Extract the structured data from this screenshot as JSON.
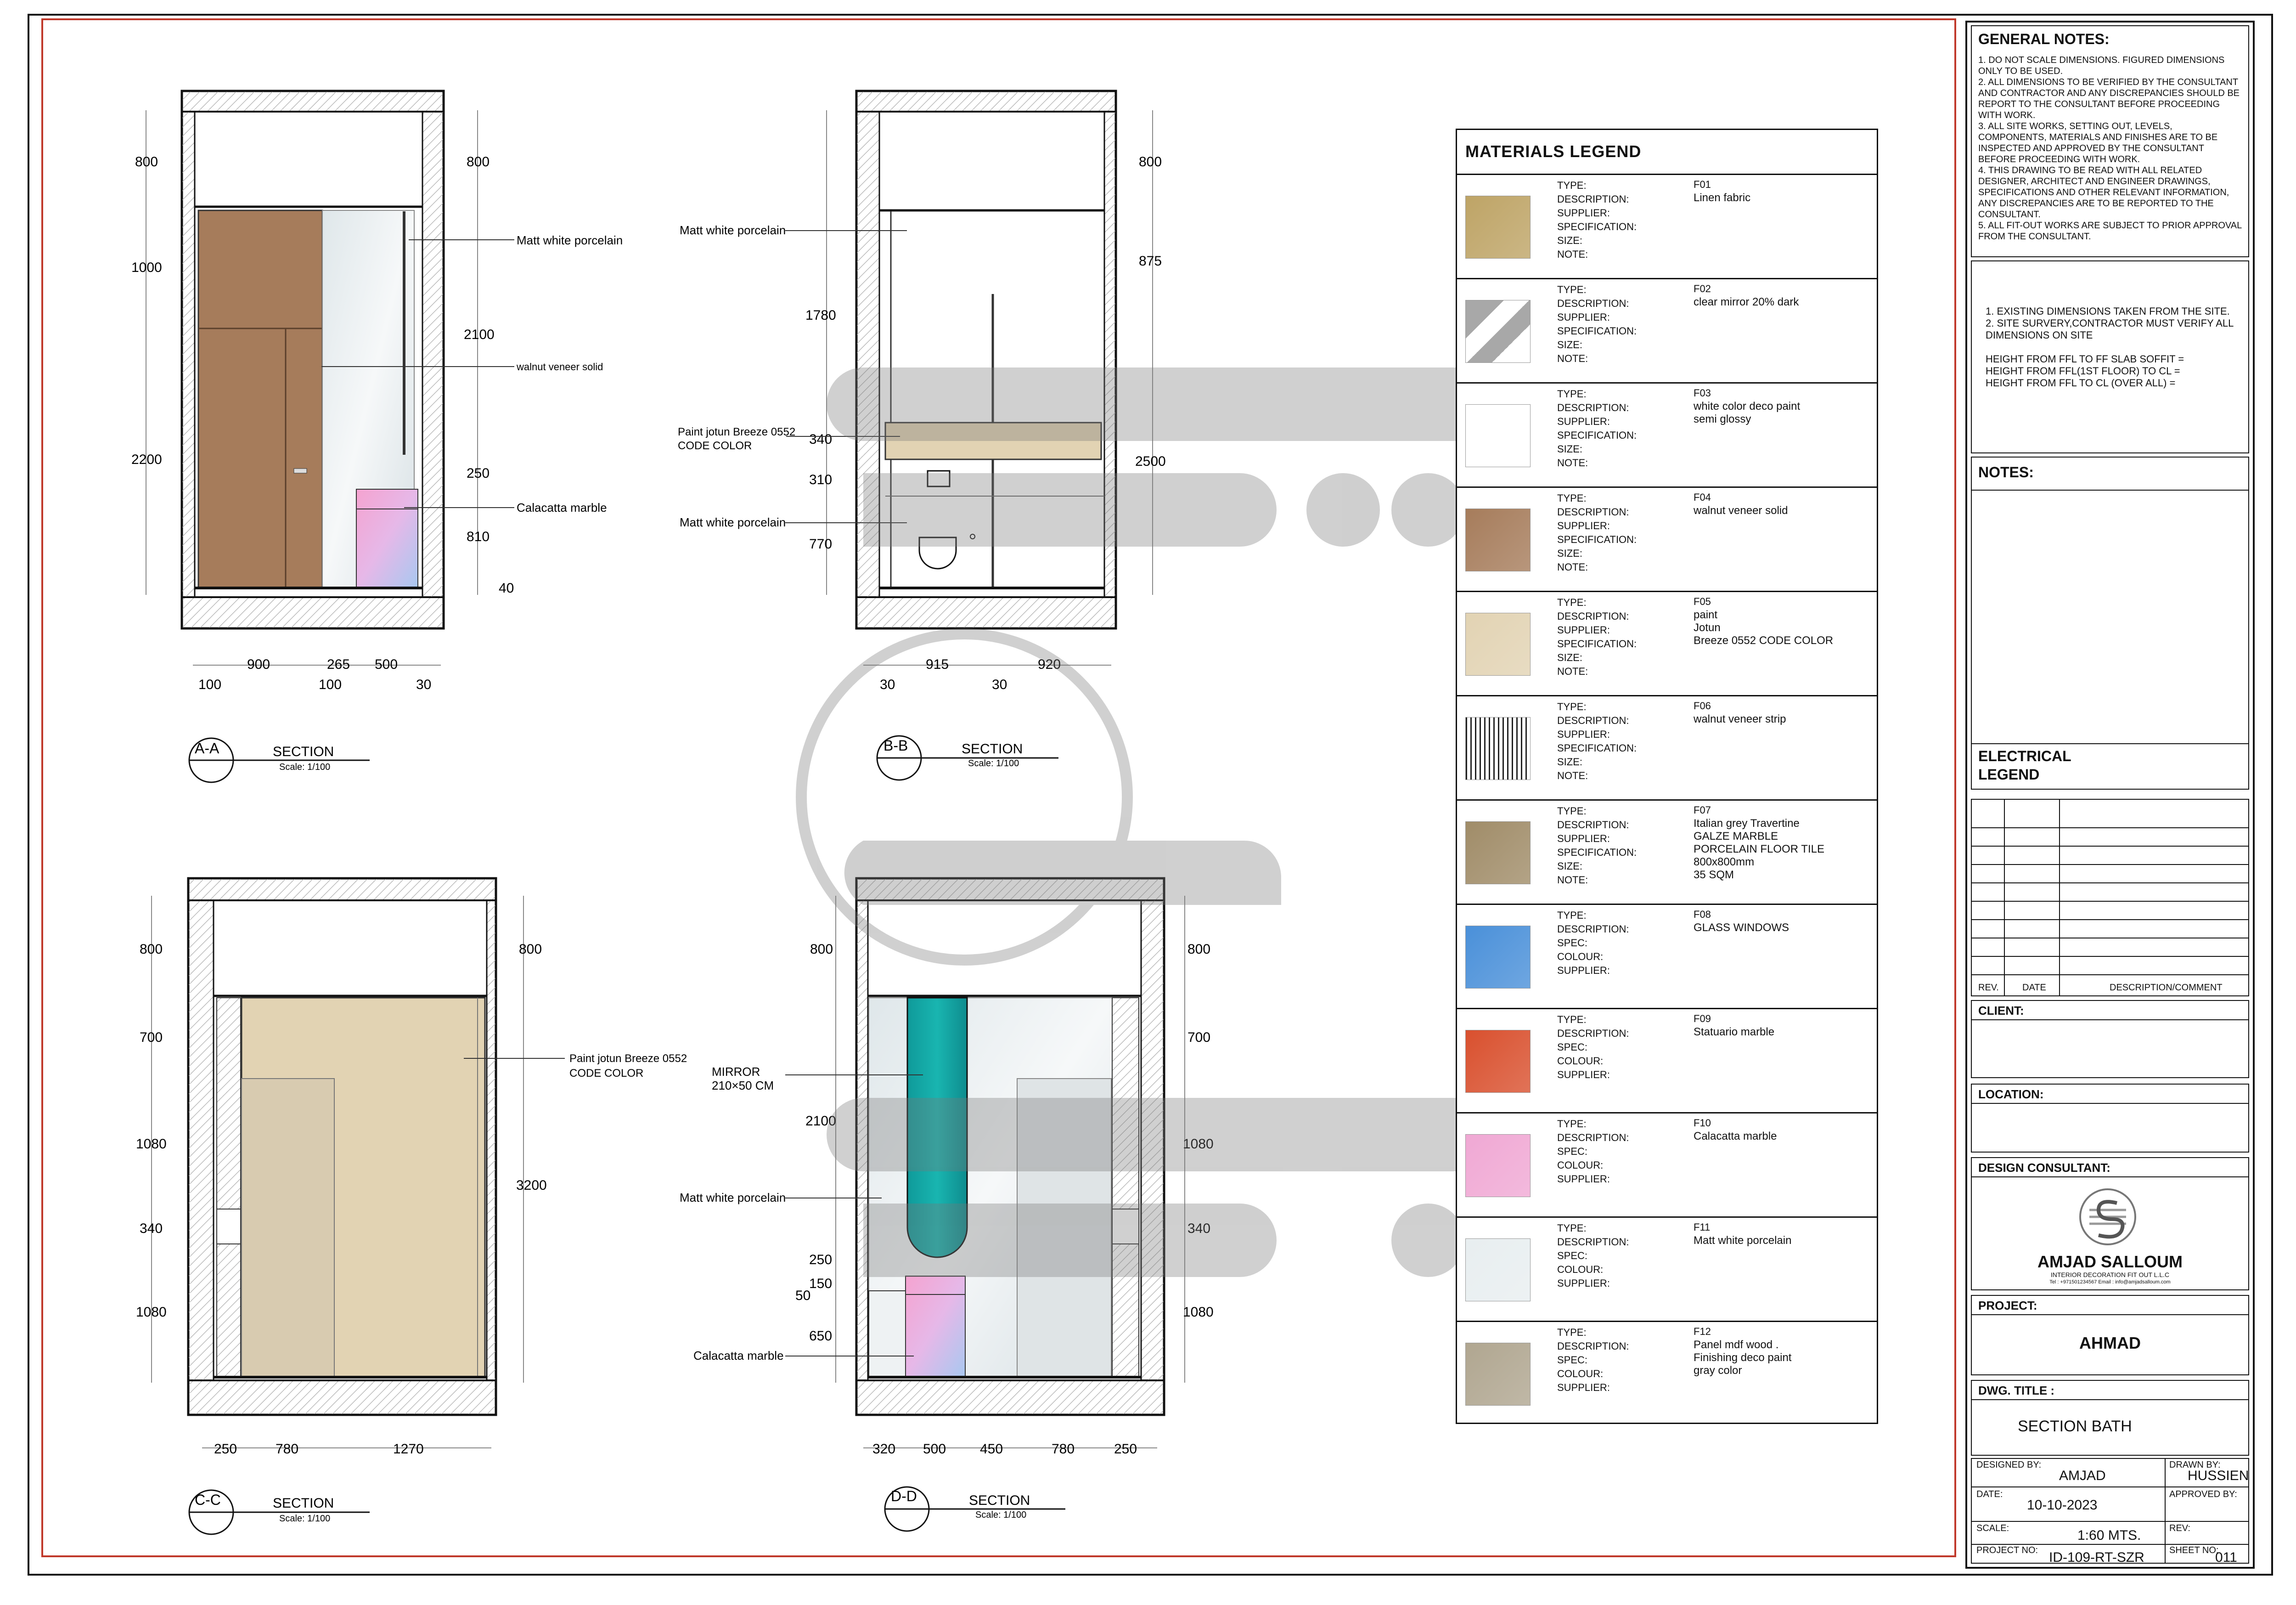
{
  "general_notes": {
    "title": "GENERAL NOTES:",
    "items": [
      "1. DO NOT SCALE DIMENSIONS. FIGURED DIMENSIONS ONLY TO BE USED.",
      "2. ALL DIMENSIONS TO BE VERIFIED BY THE CONSULTANT AND CONTRACTOR AND ANY DISCREPANCIES SHOULD BE REPORT TO THE CONSULTANT BEFORE PROCEEDING WITH WORK.",
      "3. ALL SITE WORKS, SETTING OUT, LEVELS, COMPONENTS, MATERIALS AND FINISHES ARE TO BE INSPECTED AND APPROVED BY THE CONSULTANT BEFORE PROCEEDING WITH WORK.",
      "4. THIS DRAWING TO BE READ WITH ALL RELATED DESIGNER, ARCHITECT AND ENGINEER DRAWINGS, SPECIFICATIONS AND OTHER RELEVANT INFORMATION, ANY DISCREPANCIES ARE TO BE REPORTED TO THE CONSULTANT.",
      "5. ALL FIT-OUT WORKS ARE SUBJECT TO PRIOR APPROVAL FROM THE CONSULTANT."
    ]
  },
  "site_notes": {
    "lines": [
      "1. EXISTING DIMENSIONS TAKEN FROM THE SITE.",
      "2. SITE SURVERY,CONTRACTOR MUST VERIFY ALL DIMENSIONS ON SITE",
      "",
      "HEIGHT FROM FFL TO FF SLAB SOFFIT =",
      "HEIGHT FROM FFL(1ST FLOOR) TO CL =",
      "HEIGHT FROM FFL TO CL (OVER ALL) ="
    ]
  },
  "notes_title": "NOTES:",
  "electrical_legend": {
    "line1": "ELECTRICAL",
    "line2": "LEGEND"
  },
  "revision_table": {
    "rev": "REV.",
    "date": "DATE",
    "desc": "DESCRIPTION/COMMENT"
  },
  "client_label": "CLIENT:",
  "location_label": "LOCATION:",
  "design_consultant": {
    "label": "DESIGN CONSULTANT:",
    "name": "AMJAD SALLOUM",
    "tagline": "INTERIOR DECORATION FIT OUT L.L.C",
    "contact": "Tel : +971501234567       Email : info@amjadsalloum.com"
  },
  "project": {
    "label": "PROJECT:",
    "value": "AHMAD"
  },
  "dwg_title": {
    "label": "DWG. TITLE :",
    "value": "SECTION  BATH"
  },
  "designed_by": {
    "label": "DESIGNED BY:",
    "value": "AMJAD"
  },
  "drawn_by": {
    "label": "DRAWN BY:",
    "value": "HUSSIEN"
  },
  "date": {
    "label": "DATE:",
    "value": "10-10-2023"
  },
  "approved_by": {
    "label": "APPROVED BY:",
    "value": ""
  },
  "scale": {
    "label": "SCALE:",
    "value": "1:60 MTS."
  },
  "rev": {
    "label": "REV:",
    "value": ""
  },
  "project_no": {
    "label": "PROJECT NO:",
    "value": "ID-109-RT-SZR"
  },
  "sheet_no": {
    "label": "SHEET NO:",
    "value": "011"
  },
  "materials_legend": {
    "title": "MATERIALS  LEGEND",
    "items": [
      {
        "code": "F01",
        "fields": [
          "TYPE:",
          "DESCRIPTION:",
          "SUPPLIER:",
          "SPECIFICATION:",
          "SIZE:",
          "NOTE:"
        ],
        "desc": [
          "Linen fabric"
        ],
        "color": "#bea466"
      },
      {
        "code": "F02",
        "fields": [
          "TYPE:",
          "DESCRIPTION:",
          "SUPPLIER:",
          "SPECIFICATION:",
          "SIZE:",
          "NOTE:"
        ],
        "desc": [
          "clear mirror 20% dark"
        ],
        "color": "#a8a8a8"
      },
      {
        "code": "F03",
        "fields": [
          "TYPE:",
          "DESCRIPTION:",
          "SUPPLIER:",
          "SPECIFICATION:",
          "SIZE:",
          "NOTE:"
        ],
        "desc": [
          "white color deco paint",
          "semi glossy"
        ],
        "color": "#ffffff"
      },
      {
        "code": "F04",
        "fields": [
          "TYPE:",
          "DESCRIPTION:",
          "SUPPLIER:",
          "SPECIFICATION:",
          "SIZE:",
          "NOTE:"
        ],
        "desc": [
          "walnut veneer solid"
        ],
        "color": "#a67c5b"
      },
      {
        "code": "F05",
        "fields": [
          "TYPE:",
          "DESCRIPTION:",
          "SUPPLIER:",
          "SPECIFICATION:",
          "SIZE:",
          "NOTE:"
        ],
        "desc": [
          "paint",
          "Jotun",
          "Breeze 0552 CODE COLOR"
        ],
        "color": "#e2d3b3"
      },
      {
        "code": "F06",
        "fields": [
          "TYPE:",
          "DESCRIPTION:",
          "SUPPLIER:",
          "SPECIFICATION:",
          "SIZE:",
          "NOTE:"
        ],
        "desc": [
          "walnut veneer strip"
        ],
        "color": "#ffffff"
      },
      {
        "code": "F07",
        "fields": [
          "TYPE:",
          "DESCRIPTION:",
          "SUPPLIER:",
          "SPECIFICATION:",
          "SIZE:",
          "NOTE:"
        ],
        "desc": [
          "Italian grey Travertine",
          "GALZE MARBLE",
          "PORCELAIN FLOOR TILE",
          "800x800mm",
          "35 SQM"
        ],
        "color": "#a08c68"
      },
      {
        "code": "F08",
        "fields": [
          "TYPE:",
          "DESCRIPTION:",
          "SPEC:",
          "COLOUR:",
          "SUPPLIER:"
        ],
        "desc": [
          "GLASS WINDOWS"
        ],
        "color": "#4a90d9"
      },
      {
        "code": "F09",
        "fields": [
          "TYPE:",
          "DESCRIPTION:",
          "SPEC:",
          "COLOUR:",
          "SUPPLIER:"
        ],
        "desc": [
          "Statuario marble"
        ],
        "color": "#d9502e"
      },
      {
        "code": "F10",
        "fields": [
          "TYPE:",
          "DESCRIPTION:",
          "SPEC:",
          "COLOUR:",
          "SUPPLIER:"
        ],
        "desc": [
          "Calacatta marble"
        ],
        "color": "#f0a8d4"
      },
      {
        "code": "F11",
        "fields": [
          "TYPE:",
          "DESCRIPTION:",
          "SPEC:",
          "COLOUR:",
          "SUPPLIER:"
        ],
        "desc": [
          "Matt white porcelain"
        ],
        "color": "#e8eef0"
      },
      {
        "code": "F12",
        "fields": [
          "TYPE:",
          "DESCRIPTION:",
          "SPEC:",
          "COLOUR:",
          "SUPPLIER:"
        ],
        "desc": [
          "Panel mdf wood .",
          "Finishing deco paint",
          "gray color"
        ],
        "color": "#b0a690"
      }
    ]
  },
  "sections": {
    "aa": {
      "tag": "A-A",
      "title": "SECTION",
      "scale": "Scale:  1/100",
      "dims_left": [
        "800",
        "1000",
        "2200"
      ],
      "dims_right": [
        "800",
        "2100",
        "250",
        "810",
        "40"
      ],
      "dims_bottom": [
        "900",
        "265",
        "500"
      ],
      "dims_bottom2": [
        "100",
        "100",
        "30"
      ],
      "labels": [
        "Matt white porcelain",
        "walnut veneer solid",
        "Calacatta marble"
      ]
    },
    "bb": {
      "tag": "B-B",
      "title": "SECTION",
      "scale": "Scale:  1/100",
      "dims_left": [
        "1780",
        "340",
        "310",
        "770"
      ],
      "dims_right": [
        "800",
        "875",
        "2500"
      ],
      "dims_bottom": [
        "915",
        "920"
      ],
      "dims_bottom2": [
        "30",
        "30"
      ],
      "labels": [
        "Matt white porcelain",
        "Paint jotun Breeze 0552",
        "CODE COLOR",
        "Matt white porcelain"
      ]
    },
    "cc": {
      "tag": "C-C",
      "title": "SECTION",
      "scale": "Scale:  1/100",
      "dims_left": [
        "800",
        "700",
        "1080",
        "340",
        "1080"
      ],
      "dims_right": [
        "800",
        "3200"
      ],
      "dims_bottom": [
        "250",
        "780",
        "1270"
      ],
      "labels": [
        "Paint jotun Breeze 0552",
        "CODE COLOR"
      ]
    },
    "dd": {
      "tag": "D-D",
      "title": "SECTION",
      "scale": "Scale:  1/100",
      "dims_left": [
        "800",
        "2100",
        "250",
        "150",
        "50",
        "650"
      ],
      "dims_right": [
        "800",
        "700",
        "1080",
        "340",
        "1080"
      ],
      "dims_bottom": [
        "320",
        "500",
        "450",
        "780",
        "250"
      ],
      "labels": [
        "MIRROR",
        "210×50 CM",
        "Matt white porcelain",
        "Calacatta marble"
      ]
    }
  }
}
